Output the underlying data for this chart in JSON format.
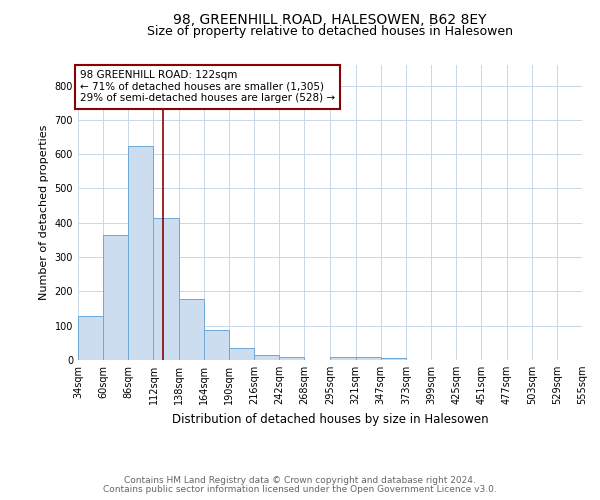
{
  "title1": "98, GREENHILL ROAD, HALESOWEN, B62 8EY",
  "title2": "Size of property relative to detached houses in Halesowen",
  "xlabel": "Distribution of detached houses by size in Halesowen",
  "ylabel": "Number of detached properties",
  "bins": [
    34,
    60,
    86,
    112,
    138,
    164,
    190,
    216,
    242,
    268,
    295,
    321,
    347,
    373,
    399,
    425,
    451,
    477,
    503,
    529,
    555
  ],
  "bar_heights": [
    128,
    365,
    623,
    415,
    178,
    88,
    35,
    15,
    8,
    0,
    8,
    8,
    5,
    0,
    0,
    0,
    0,
    0,
    0,
    0
  ],
  "bar_facecolor": "#ccddf0",
  "bar_edgecolor": "#6fa8d6",
  "vline_x": 122,
  "vline_color": "#8b0000",
  "annotation_text": "98 GREENHILL ROAD: 122sqm\n← 71% of detached houses are smaller (1,305)\n29% of semi-detached houses are larger (528) →",
  "annotation_box_edgecolor": "#8b0000",
  "annotation_box_facecolor": "#ffffff",
  "ylim": [
    0,
    860
  ],
  "yticks": [
    0,
    100,
    200,
    300,
    400,
    500,
    600,
    700,
    800
  ],
  "footer_line1": "Contains HM Land Registry data © Crown copyright and database right 2024.",
  "footer_line2": "Contains public sector information licensed under the Open Government Licence v3.0.",
  "background_color": "#ffffff",
  "grid_color": "#c8d8e8",
  "title1_fontsize": 10,
  "title2_fontsize": 9,
  "xlabel_fontsize": 8.5,
  "ylabel_fontsize": 8,
  "tick_fontsize": 7,
  "annotation_fontsize": 7.5,
  "footer_fontsize": 6.5
}
